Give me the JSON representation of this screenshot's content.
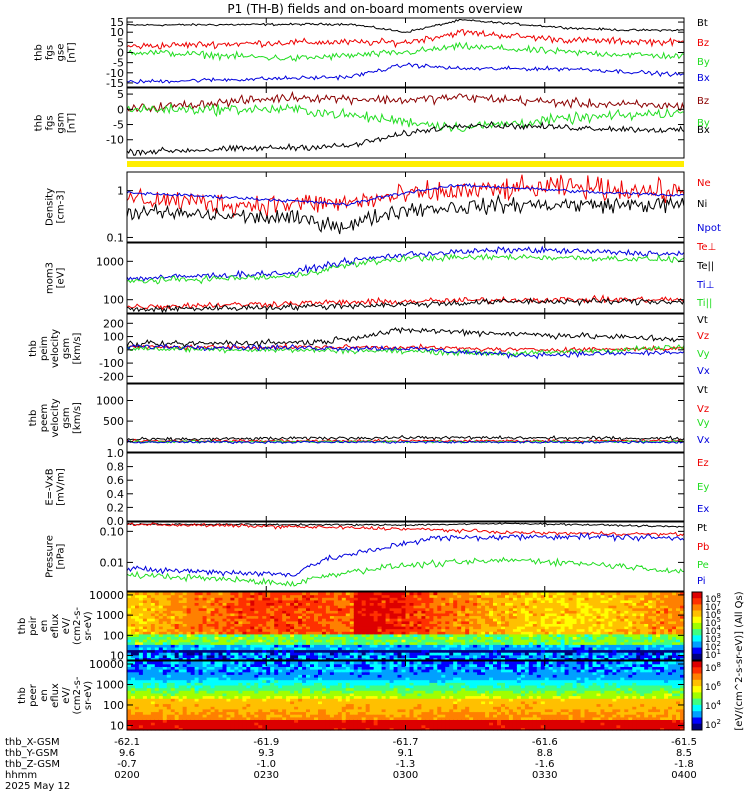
{
  "title": "P1 (TH-B) fields and on-board moments overview",
  "colors": {
    "black": "#000000",
    "red": "#ee0000",
    "green": "#22dd22",
    "blue": "#0000dd",
    "darkred": "#8b0000",
    "yellow": "#ffee00"
  },
  "chart_data": [
    {
      "type": "line",
      "panel": "fgs-gse",
      "ylabel": [
        "thb",
        "fgs",
        "gse",
        "[nT]"
      ],
      "ylim": [
        -17,
        17
      ],
      "yticks": [
        "15",
        "10",
        "5",
        "0",
        "-5",
        "-10",
        "-15"
      ],
      "ytick_values": [
        15,
        10,
        5,
        0,
        -5,
        -10,
        -15
      ],
      "series": [
        {
          "name": "Bt",
          "color": "black",
          "keypoints": [
            [
              0,
              13.5
            ],
            [
              0.4,
              14
            ],
            [
              0.5,
              10
            ],
            [
              0.6,
              16
            ],
            [
              0.8,
              12
            ],
            [
              0.9,
              11
            ],
            [
              1,
              11
            ]
          ],
          "noise": 0.8
        },
        {
          "name": "Bz",
          "color": "red",
          "keypoints": [
            [
              0,
              3
            ],
            [
              0.3,
              5
            ],
            [
              0.5,
              5
            ],
            [
              0.6,
              10
            ],
            [
              0.8,
              6
            ],
            [
              1,
              5
            ]
          ],
          "noise": 2.5
        },
        {
          "name": "By",
          "color": "green",
          "keypoints": [
            [
              0,
              0.5
            ],
            [
              0.3,
              -3
            ],
            [
              0.5,
              0
            ],
            [
              0.6,
              3
            ],
            [
              0.8,
              0
            ],
            [
              1,
              -2
            ]
          ],
          "noise": 2.5
        },
        {
          "name": "Bx",
          "color": "blue",
          "keypoints": [
            [
              0,
              -14.5
            ],
            [
              0.4,
              -12
            ],
            [
              0.5,
              -6
            ],
            [
              0.6,
              -8
            ],
            [
              0.8,
              -8
            ],
            [
              1,
              -11
            ]
          ],
          "noise": 1.5
        }
      ]
    },
    {
      "type": "line",
      "panel": "fgs-gsm",
      "ylabel": [
        "thb",
        "fgs",
        "gsm",
        "[nT]"
      ],
      "ylim": [
        -16,
        7
      ],
      "yticks": [
        "5",
        "0",
        "-5",
        "-10"
      ],
      "ytick_values": [
        5,
        0,
        -5,
        -10
      ],
      "series": [
        {
          "name": "Bz",
          "color": "darkred",
          "keypoints": [
            [
              0,
              0
            ],
            [
              0.3,
              4
            ],
            [
              0.5,
              3
            ],
            [
              0.6,
              4
            ],
            [
              0.8,
              2
            ],
            [
              1,
              1
            ]
          ],
          "noise": 2.2
        },
        {
          "name": "By",
          "color": "green",
          "keypoints": [
            [
              0,
              0
            ],
            [
              0.3,
              0
            ],
            [
              0.5,
              -4
            ],
            [
              0.6,
              -6
            ],
            [
              0.8,
              -3
            ],
            [
              1,
              -1
            ]
          ],
          "noise": 2.5
        },
        {
          "name": "Bx",
          "color": "black",
          "keypoints": [
            [
              0,
              -14
            ],
            [
              0.4,
              -12
            ],
            [
              0.5,
              -8
            ],
            [
              0.6,
              -5
            ],
            [
              0.8,
              -6
            ],
            [
              1,
              -7
            ]
          ],
          "noise": 1.5
        }
      ]
    },
    {
      "type": "line",
      "panel": "density",
      "log": true,
      "ylabel": [
        "Density",
        "[cm-3]"
      ],
      "ylim": [
        0.08,
        2.5
      ],
      "yticks": [
        "1",
        "0.1"
      ],
      "ytick_values": [
        1,
        0.1
      ],
      "series": [
        {
          "name": "Ne",
          "color": "red",
          "keypoints": [
            [
              0,
              0.7
            ],
            [
              0.2,
              0.5
            ],
            [
              0.4,
              0.55
            ],
            [
              0.55,
              0.9
            ],
            [
              0.8,
              1.2
            ],
            [
              1,
              0.9
            ]
          ],
          "noise": 0.35
        },
        {
          "name": "Ni",
          "color": "black",
          "keypoints": [
            [
              0,
              0.35
            ],
            [
              0.3,
              0.25
            ],
            [
              0.4,
              0.17
            ],
            [
              0.5,
              0.4
            ],
            [
              0.7,
              0.5
            ],
            [
              1,
              0.5
            ]
          ],
          "noise": 0.25
        },
        {
          "name": "Npot",
          "color": "blue",
          "keypoints": [
            [
              0,
              0.9
            ],
            [
              0.4,
              0.5
            ],
            [
              0.6,
              1.3
            ],
            [
              0.85,
              0.9
            ],
            [
              1,
              0.8
            ]
          ],
          "noise": 0.05
        }
      ]
    },
    {
      "type": "line",
      "panel": "temperature",
      "log": true,
      "ylabel": [
        "mom3",
        "[eV]"
      ],
      "ylim": [
        45,
        3000
      ],
      "yticks": [
        "1000",
        "100"
      ],
      "ytick_values": [
        1000,
        100
      ],
      "series": [
        {
          "name": "Te⊥",
          "color": "red",
          "keypoints": [
            [
              0,
              65
            ],
            [
              0.3,
              80
            ],
            [
              0.5,
              90
            ],
            [
              0.7,
              100
            ],
            [
              1,
              100
            ]
          ],
          "noise": 0.12
        },
        {
          "name": "Te||",
          "color": "black",
          "keypoints": [
            [
              0,
              55
            ],
            [
              0.3,
              65
            ],
            [
              0.5,
              75
            ],
            [
              0.7,
              90
            ],
            [
              1,
              90
            ]
          ],
          "noise": 0.12
        },
        {
          "name": "Ti⊥",
          "color": "blue",
          "keypoints": [
            [
              0,
              350
            ],
            [
              0.3,
              500
            ],
            [
              0.5,
              1500
            ],
            [
              0.7,
              2000
            ],
            [
              1,
              1500
            ]
          ],
          "noise": 0.12
        },
        {
          "name": "Ti||",
          "color": "green",
          "keypoints": [
            [
              0,
              300
            ],
            [
              0.3,
              400
            ],
            [
              0.5,
              1200
            ],
            [
              0.7,
              1300
            ],
            [
              1,
              1100
            ]
          ],
          "noise": 0.12
        }
      ]
    },
    {
      "type": "line",
      "panel": "peim-velocity",
      "ylabel": [
        "thb",
        "peim",
        "velocity",
        "gsm",
        "[km/s]"
      ],
      "ylim": [
        -250,
        270
      ],
      "yticks": [
        "200",
        "100",
        "0",
        "-100",
        "-200"
      ],
      "ytick_values": [
        200,
        100,
        0,
        -100,
        -200
      ],
      "series": [
        {
          "name": "Vt",
          "color": "black",
          "keypoints": [
            [
              0,
              40
            ],
            [
              0.35,
              60
            ],
            [
              0.5,
              150
            ],
            [
              0.7,
              120
            ],
            [
              1,
              80
            ]
          ],
          "noise": 35
        },
        {
          "name": "Vz",
          "color": "red",
          "keypoints": [
            [
              0,
              20
            ],
            [
              0.5,
              20
            ],
            [
              0.7,
              0
            ],
            [
              1,
              10
            ]
          ],
          "noise": 25
        },
        {
          "name": "Vy",
          "color": "green",
          "keypoints": [
            [
              0,
              10
            ],
            [
              0.5,
              -10
            ],
            [
              0.7,
              -30
            ],
            [
              1,
              20
            ]
          ],
          "noise": 30
        },
        {
          "name": "Vx",
          "color": "blue",
          "keypoints": [
            [
              0,
              25
            ],
            [
              0.5,
              10
            ],
            [
              0.7,
              -40
            ],
            [
              1,
              -20
            ]
          ],
          "noise": 30
        }
      ]
    },
    {
      "type": "line",
      "panel": "peem-velocity",
      "ylabel": [
        "thb",
        "peem",
        "velocity",
        "gsm",
        "[km/s]"
      ],
      "ylim": [
        -250,
        1400
      ],
      "yticks": [
        "1000",
        "500",
        "0"
      ],
      "ytick_values": [
        1000,
        500,
        0
      ],
      "series": [
        {
          "name": "Vt",
          "color": "black",
          "keypoints": [
            [
              0,
              50
            ],
            [
              0.5,
              100
            ],
            [
              1,
              80
            ]
          ],
          "noise": 60
        },
        {
          "name": "Vz",
          "color": "red",
          "keypoints": [
            [
              0,
              20
            ],
            [
              0.5,
              20
            ],
            [
              1,
              20
            ]
          ],
          "noise": 45
        },
        {
          "name": "Vy",
          "color": "green",
          "keypoints": [
            [
              0,
              0
            ],
            [
              1,
              0
            ]
          ],
          "noise": 45
        },
        {
          "name": "Vx",
          "color": "blue",
          "keypoints": [
            [
              0,
              -10
            ],
            [
              1,
              -10
            ]
          ],
          "noise": 45
        }
      ]
    },
    {
      "type": "line",
      "panel": "efield",
      "ylabel": [
        "E=-VxB",
        "[mV/m]"
      ],
      "ylim": [
        0,
        1
      ],
      "yticks": [
        "1.0",
        "0.8",
        "0.6",
        "0.4",
        "0.2",
        "0.0"
      ],
      "ytick_values": [
        1,
        0.8,
        0.6,
        0.4,
        0.2,
        0
      ],
      "series": [
        {
          "name": "Ez",
          "color": "red",
          "keypoints": [],
          "noise": 0
        },
        {
          "name": "Ey",
          "color": "green",
          "keypoints": [],
          "noise": 0
        },
        {
          "name": "Ex",
          "color": "blue",
          "keypoints": [],
          "noise": 0
        }
      ]
    },
    {
      "type": "line",
      "panel": "pressure",
      "log": true,
      "ylabel": [
        "Pressure",
        "[nPa]"
      ],
      "ylim": [
        0.0012,
        0.2
      ],
      "yticks": [
        "0.10",
        "0.01"
      ],
      "ytick_values": [
        0.1,
        0.01
      ],
      "series": [
        {
          "name": "Pt",
          "color": "black",
          "keypoints": [
            [
              0,
              0.17
            ],
            [
              0.5,
              0.16
            ],
            [
              0.7,
              0.18
            ],
            [
              1,
              0.14
            ]
          ],
          "noise": 0.04
        },
        {
          "name": "Pb",
          "color": "red",
          "keypoints": [
            [
              0,
              0.17
            ],
            [
              0.5,
              0.12
            ],
            [
              0.7,
              0.09
            ],
            [
              1,
              0.08
            ]
          ],
          "noise": 0.08
        },
        {
          "name": "Pe",
          "color": "green",
          "keypoints": [
            [
              0,
              0.004
            ],
            [
              0.3,
              0.002
            ],
            [
              0.5,
              0.008
            ],
            [
              0.7,
              0.012
            ],
            [
              1,
              0.005
            ]
          ],
          "noise": 0.15
        },
        {
          "name": "Pi",
          "color": "blue",
          "keypoints": [
            [
              0,
              0.006
            ],
            [
              0.3,
              0.004
            ],
            [
              0.45,
              0.025
            ],
            [
              0.55,
              0.06
            ],
            [
              0.8,
              0.07
            ],
            [
              1,
              0.06
            ]
          ],
          "noise": 0.15
        }
      ]
    },
    {
      "type": "heatmap",
      "panel": "peir-eflux",
      "ylabel": [
        "thb",
        "peir",
        "en",
        "eflux",
        "eV/",
        "(cm2-s-",
        "sr-eV)"
      ],
      "yticks": [
        "10000",
        "1000",
        "100",
        "10"
      ],
      "ytick_values": [
        10000,
        1000,
        100,
        10
      ],
      "ylim": [
        6,
        14000
      ],
      "log": true
    },
    {
      "type": "heatmap",
      "panel": "peer-eflux",
      "ylabel": [
        "thb",
        "peer",
        "en",
        "eflux",
        "eV/",
        "(cm2-s-",
        "sr-eV)"
      ],
      "yticks": [
        "10000",
        "1000",
        "100",
        "10"
      ],
      "ytick_values": [
        10000,
        1000,
        100,
        10
      ],
      "ylim": [
        6,
        14000
      ],
      "log": true
    }
  ],
  "colorbar": {
    "label": "[eV/(cm^2-s-sr-eV)] (All Qs)",
    "ticks_top": [
      "10^8",
      "10^7",
      "10^6",
      "10^5",
      "10^4",
      "10^3",
      "10^2",
      "10^1"
    ],
    "ticks_bottom": [
      "10^8",
      "10^6",
      "10^4",
      "10^2"
    ]
  },
  "xaxis": {
    "row_labels": [
      "thb_X-GSM",
      "thb_Y-GSM",
      "thb_Z-GSM",
      "hhmm",
      "2025 May 12"
    ],
    "columns": [
      {
        "x": [
          "-62.1",
          "9.6",
          "-0.7"
        ],
        "time": "0200"
      },
      {
        "x": [
          "-61.9",
          "9.3",
          "-1.0"
        ],
        "time": "0230"
      },
      {
        "x": [
          "-61.7",
          "9.1",
          "-1.3"
        ],
        "time": "0300"
      },
      {
        "x": [
          "-61.6",
          "8.8",
          "-1.6"
        ],
        "time": "0330"
      },
      {
        "x": [
          "-61.5",
          "8.5",
          "-1.8"
        ],
        "time": "0400"
      }
    ]
  }
}
